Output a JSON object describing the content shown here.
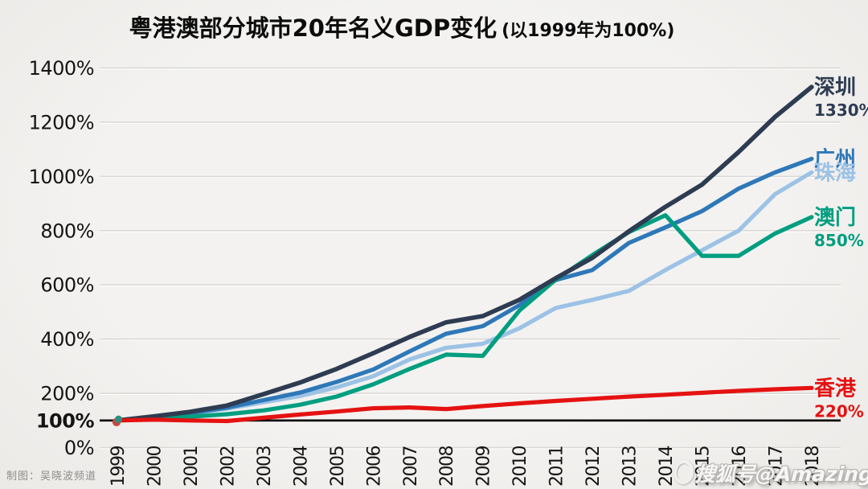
{
  "title": {
    "main": "粤港澳部分城市20年名义GDP变化",
    "sub": "(以1999年为100%)"
  },
  "credit": "制图：吴晓波频道",
  "watermark": "搜狐号@Amazing",
  "chart_data": {
    "type": "line",
    "title": "粤港澳部分城市20年名义GDP变化 (以1999年为100%)",
    "subtitle": "以1999年为100%",
    "x": [
      "1999",
      "2000",
      "2001",
      "2002",
      "2003",
      "2004",
      "2005",
      "2006",
      "2007",
      "2008",
      "2009",
      "2010",
      "2011",
      "2012",
      "2013",
      "2014",
      "2015",
      "2016",
      "2017",
      "2018"
    ],
    "xlabel": "",
    "ylabel": "",
    "ylim": [
      0,
      1400
    ],
    "grid": true,
    "legend_position": "right-end-labels",
    "y_ticks": [
      {
        "label": "1400%",
        "value": 1400
      },
      {
        "label": "1200%",
        "value": 1200
      },
      {
        "label": "1000%",
        "value": 1000
      },
      {
        "label": "800%",
        "value": 800
      },
      {
        "label": "600%",
        "value": 600
      },
      {
        "label": "400%",
        "value": 400
      },
      {
        "label": "200%",
        "value": 200
      },
      {
        "label": "100%",
        "value": 100,
        "bold": true,
        "baseline": true
      },
      {
        "label": "0%",
        "value": 0
      }
    ],
    "series": [
      {
        "name": "深圳",
        "color": "#2e3c52",
        "end_value_label": "1330%",
        "values": [
          100,
          115,
          132,
          155,
          197,
          240,
          290,
          348,
          408,
          462,
          485,
          545,
          625,
          700,
          798,
          888,
          970,
          1090,
          1220,
          1330
        ]
      },
      {
        "name": "广州",
        "color": "#2e78b8",
        "end_value_label": "",
        "values": [
          100,
          112,
          127,
          147,
          175,
          203,
          242,
          288,
          355,
          420,
          448,
          525,
          618,
          655,
          755,
          812,
          872,
          955,
          1015,
          1065
        ]
      },
      {
        "name": "珠海",
        "color": "#9cc2e5",
        "end_value_label": "",
        "values": [
          100,
          111,
          125,
          144,
          167,
          190,
          222,
          263,
          325,
          368,
          383,
          440,
          515,
          545,
          578,
          655,
          728,
          800,
          935,
          1015
        ]
      },
      {
        "name": "澳门",
        "color": "#009e80",
        "end_value_label": "850%",
        "values": [
          100,
          108,
          114,
          123,
          137,
          158,
          188,
          233,
          290,
          343,
          338,
          505,
          620,
          710,
          795,
          857,
          707,
          707,
          790,
          850
        ]
      },
      {
        "name": "香港",
        "color": "#e51212",
        "end_value_label": "220%",
        "values": [
          100,
          103,
          100,
          98,
          110,
          122,
          133,
          145,
          148,
          142,
          153,
          163,
          172,
          180,
          188,
          195,
          202,
          209,
          215,
          220
        ]
      }
    ],
    "start_marker": {
      "x": "1999",
      "value": 100,
      "colors": [
        "#c7473f",
        "#2a9184"
      ]
    }
  }
}
